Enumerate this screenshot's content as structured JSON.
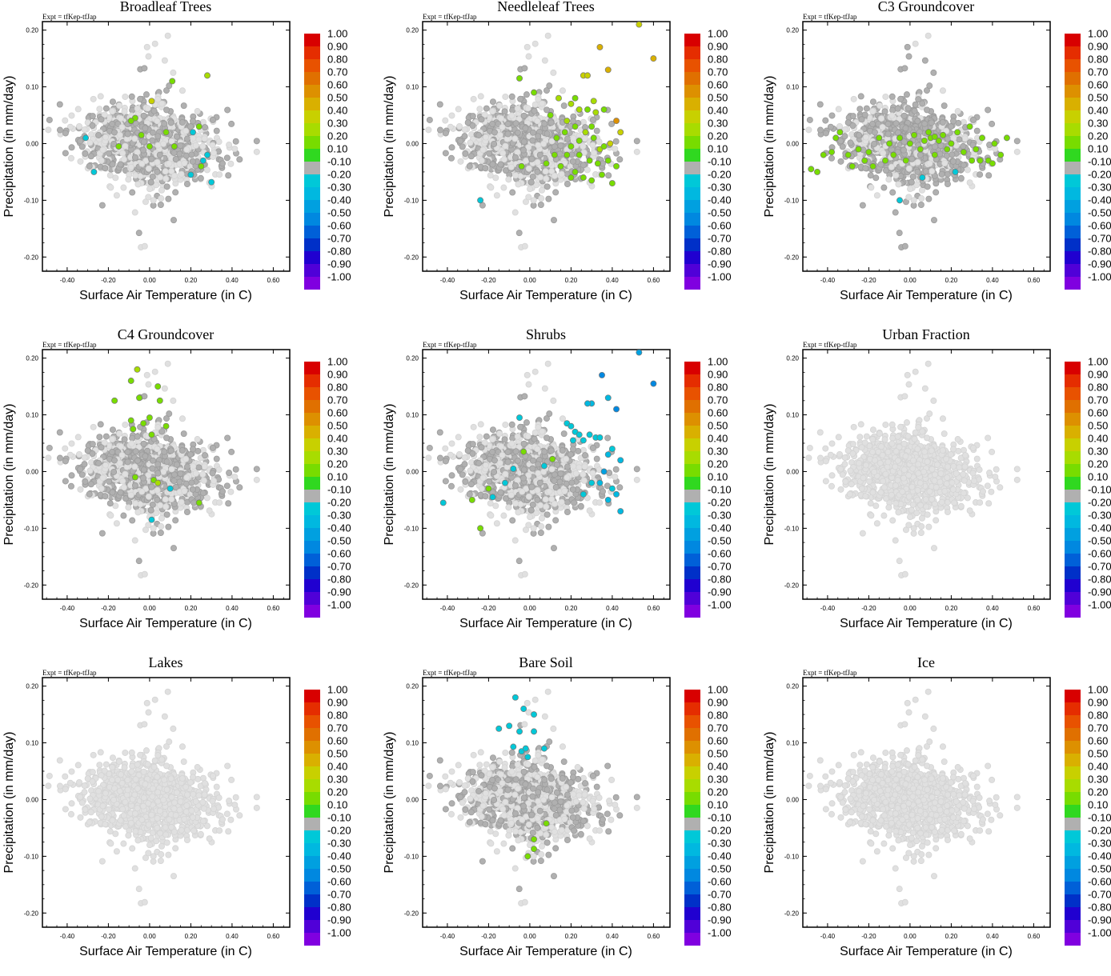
{
  "chart_data": {
    "type": "scatter",
    "expt_label": "Expt = tfKep-tfJap",
    "xlabel": "Surface Air Temperature (in C)",
    "ylabel": "Precipitation (in mm/day)",
    "xlim": [
      -0.52,
      0.68
    ],
    "ylim": [
      -0.225,
      0.215
    ],
    "xticks": [
      "-0.40",
      "-0.20",
      "0.00",
      "0.20",
      "0.40",
      "0.60"
    ],
    "yticks": [
      "0.20",
      "0.10",
      "0.00",
      "-0.10",
      "-0.20"
    ],
    "colorbar": {
      "labels": [
        "1.00",
        "0.90",
        "0.80",
        "0.70",
        "0.60",
        "0.50",
        "0.40",
        "0.30",
        "0.20",
        "0.10",
        "-0.10",
        "-0.20",
        "-0.30",
        "-0.40",
        "-0.50",
        "-0.60",
        "-0.70",
        "-0.80",
        "-0.90",
        "-1.00"
      ],
      "colors": [
        "#d80000",
        "#e52d00",
        "#e85200",
        "#e07000",
        "#dd9000",
        "#d9b000",
        "#c8d000",
        "#a8dc00",
        "#78dc00",
        "#30d820",
        "#b0b0b0",
        "#00c8d8",
        "#00b8e0",
        "#00a0e0",
        "#0088e0",
        "#0060d8",
        "#0030c8",
        "#2000d0",
        "#5000d8",
        "#8000e0"
      ]
    },
    "panels": [
      {
        "title": "Broadleaf Trees",
        "points": [
          [
            0.28,
            0.12
          ],
          [
            0.11,
            0.11
          ],
          [
            0.01,
            0.075
          ],
          [
            0.24,
            0.03
          ],
          [
            -0.07,
            0.045
          ],
          [
            -0.09,
            0.04
          ],
          [
            -0.04,
            0.015
          ],
          [
            0.08,
            0.02
          ],
          [
            0.21,
            0.02
          ],
          [
            -0.31,
            0.01
          ],
          [
            -0.15,
            -0.005
          ],
          [
            0.0,
            -0.005
          ],
          [
            0.12,
            -0.005
          ],
          [
            0.28,
            -0.02
          ],
          [
            0.26,
            -0.03
          ],
          [
            0.25,
            -0.04
          ],
          [
            0.2,
            -0.055
          ],
          [
            0.3,
            -0.068
          ],
          [
            -0.27,
            -0.05
          ]
        ],
        "point_values": [
          0.3,
          0.15,
          0.4,
          0.2,
          0.15,
          0.15,
          0.2,
          0.15,
          -0.2,
          -0.2,
          0.15,
          0.15,
          0.15,
          -0.2,
          -0.2,
          0.15,
          -0.2,
          -0.2,
          -0.2
        ],
        "hidden_values": [
          0.2,
          0.2,
          0.2,
          0.2
        ]
      },
      {
        "title": "Needleleaf Trees",
        "points": [
          [
            0.34,
            0.17
          ],
          [
            0.38,
            0.13
          ],
          [
            0.26,
            0.12
          ],
          [
            0.28,
            0.12
          ],
          [
            -0.05,
            0.115
          ],
          [
            0.02,
            0.09
          ],
          [
            0.14,
            0.08
          ],
          [
            0.22,
            0.08
          ],
          [
            0.31,
            0.075
          ],
          [
            0.2,
            0.07
          ],
          [
            0.24,
            0.06
          ],
          [
            0.28,
            0.06
          ],
          [
            0.32,
            0.055
          ],
          [
            0.36,
            0.06
          ],
          [
            0.42,
            0.04
          ],
          [
            0.1,
            0.05
          ],
          [
            0.18,
            0.04
          ],
          [
            0.22,
            0.03
          ],
          [
            0.3,
            0.03
          ],
          [
            0.27,
            0.02
          ],
          [
            0.17,
            0.02
          ],
          [
            0.13,
            0.01
          ],
          [
            0.24,
            0.005
          ],
          [
            0.31,
            0.01
          ],
          [
            0.34,
            -0.01
          ],
          [
            0.36,
            -0.005
          ],
          [
            0.39,
            0.0
          ],
          [
            0.44,
            0.02
          ],
          [
            0.2,
            -0.005
          ],
          [
            0.12,
            -0.02
          ],
          [
            0.18,
            -0.02
          ],
          [
            0.24,
            -0.02
          ],
          [
            0.29,
            -0.03
          ],
          [
            0.33,
            -0.035
          ],
          [
            0.42,
            -0.04
          ],
          [
            0.38,
            -0.03
          ],
          [
            0.08,
            -0.035
          ],
          [
            0.15,
            -0.04
          ],
          [
            0.22,
            -0.05
          ],
          [
            0.26,
            -0.06
          ],
          [
            0.35,
            -0.055
          ],
          [
            0.3,
            -0.065
          ],
          [
            0.4,
            -0.07
          ],
          [
            -0.04,
            -0.04
          ],
          [
            -0.24,
            -0.1
          ],
          [
            0.2,
            -0.06
          ],
          [
            0.6,
            0.15
          ],
          [
            0.53,
            0.21
          ]
        ],
        "point_values": [
          0.5,
          0.5,
          0.4,
          0.4,
          0.15,
          0.15,
          0.3,
          0.2,
          0.3,
          0.3,
          0.3,
          0.2,
          0.3,
          0.2,
          0.6,
          0.15,
          0.3,
          0.2,
          0.2,
          0.3,
          0.15,
          0.15,
          0.2,
          0.2,
          0.3,
          0.2,
          0.4,
          0.4,
          0.15,
          0.15,
          0.15,
          0.15,
          0.2,
          0.2,
          0.15,
          0.2,
          0.15,
          0.15,
          0.15,
          0.15,
          0.15,
          0.15,
          0.15,
          0.15,
          -0.2,
          0.15,
          0.5,
          0.4
        ]
      },
      {
        "title": "C3 Groundcover",
        "points": [
          [
            -0.48,
            -0.045
          ],
          [
            -0.45,
            -0.05
          ],
          [
            -0.42,
            -0.02
          ],
          [
            -0.38,
            -0.015
          ],
          [
            -0.36,
            0.01
          ],
          [
            -0.3,
            -0.02
          ],
          [
            -0.25,
            -0.01
          ],
          [
            -0.22,
            -0.03
          ],
          [
            -0.2,
            -0.015
          ],
          [
            -0.15,
            0.01
          ],
          [
            -0.12,
            -0.03
          ],
          [
            -0.1,
            0.0
          ],
          [
            -0.08,
            -0.02
          ],
          [
            -0.05,
            0.01
          ],
          [
            -0.02,
            -0.03
          ],
          [
            0.0,
            0.0
          ],
          [
            0.02,
            0.015
          ],
          [
            0.05,
            -0.01
          ],
          [
            0.07,
            0.005
          ],
          [
            0.1,
            0.01
          ],
          [
            0.12,
            -0.02
          ],
          [
            0.14,
            0.005
          ],
          [
            0.16,
            0.015
          ],
          [
            0.18,
            -0.01
          ],
          [
            0.2,
            0.0
          ],
          [
            0.23,
            0.02
          ],
          [
            0.26,
            -0.015
          ],
          [
            0.29,
            0.03
          ],
          [
            0.32,
            -0.01
          ],
          [
            0.35,
            0.01
          ],
          [
            0.38,
            -0.03
          ],
          [
            0.41,
            0.0
          ],
          [
            0.44,
            -0.02
          ],
          [
            0.47,
            0.01
          ],
          [
            0.09,
            0.02
          ],
          [
            -0.18,
            -0.04
          ],
          [
            0.3,
            -0.03
          ],
          [
            0.06,
            -0.06
          ],
          [
            0.22,
            -0.05
          ],
          [
            -0.05,
            -0.1
          ],
          [
            0.34,
            -0.03
          ],
          [
            -0.28,
            -0.04
          ],
          [
            0.12,
            0.012
          ],
          [
            -0.34,
            0.02
          ],
          [
            0.4,
            -0.035
          ]
        ],
        "point_values": [
          0.15,
          0.15,
          0.15,
          0.2,
          0.15,
          0.15,
          0.15,
          0.2,
          0.15,
          0.15,
          0.15,
          0.15,
          0.2,
          0.15,
          0.15,
          0.15,
          0.15,
          0.15,
          0.15,
          0.15,
          0.15,
          0.15,
          0.15,
          0.15,
          0.15,
          0.15,
          0.15,
          0.15,
          0.15,
          0.15,
          0.2,
          0.15,
          0.15,
          0.15,
          0.15,
          0.15,
          0.15,
          -0.2,
          -0.2,
          -0.2,
          0.15,
          0.15,
          0.15,
          0.15,
          0.2
        ]
      },
      {
        "title": "C4 Groundcover",
        "points": [
          [
            -0.06,
            0.18
          ],
          [
            -0.09,
            0.16
          ],
          [
            -0.17,
            0.125
          ],
          [
            -0.05,
            0.13
          ],
          [
            0.04,
            0.15
          ],
          [
            0.05,
            0.125
          ],
          [
            -0.09,
            0.09
          ],
          [
            -0.03,
            0.085
          ],
          [
            0.0,
            0.095
          ],
          [
            0.08,
            0.08
          ],
          [
            -0.08,
            0.075
          ],
          [
            0.01,
            0.065
          ],
          [
            -0.07,
            -0.01
          ],
          [
            0.02,
            -0.015
          ],
          [
            0.04,
            -0.02
          ],
          [
            0.24,
            -0.055
          ],
          [
            0.1,
            -0.03
          ],
          [
            0.01,
            -0.085
          ]
        ],
        "point_values": [
          0.3,
          0.2,
          0.15,
          0.15,
          0.15,
          0.15,
          0.15,
          0.15,
          0.15,
          0.15,
          0.15,
          0.15,
          0.15,
          0.15,
          0.3,
          0.15,
          -0.2,
          -0.2
        ]
      },
      {
        "title": "Shrubs",
        "points": [
          [
            0.35,
            0.17
          ],
          [
            0.42,
            0.11
          ],
          [
            0.38,
            0.13
          ],
          [
            0.3,
            0.12
          ],
          [
            0.28,
            0.12
          ],
          [
            0.18,
            0.085
          ],
          [
            0.2,
            0.08
          ],
          [
            0.22,
            0.07
          ],
          [
            0.24,
            0.065
          ],
          [
            0.29,
            0.065
          ],
          [
            0.32,
            0.06
          ],
          [
            0.34,
            0.06
          ],
          [
            0.26,
            0.055
          ],
          [
            0.21,
            0.055
          ],
          [
            0.4,
            0.04
          ],
          [
            0.38,
            0.03
          ],
          [
            0.44,
            0.02
          ],
          [
            0.36,
            0.0
          ],
          [
            0.34,
            -0.02
          ],
          [
            0.4,
            -0.03
          ],
          [
            0.42,
            -0.04
          ],
          [
            0.38,
            -0.05
          ],
          [
            0.44,
            -0.07
          ],
          [
            0.26,
            -0.04
          ],
          [
            -0.05,
            0.095
          ],
          [
            -0.03,
            0.035
          ],
          [
            0.11,
            0.022
          ],
          [
            0.07,
            0.01
          ],
          [
            -0.08,
            0.005
          ],
          [
            -0.12,
            -0.02
          ],
          [
            -0.2,
            -0.03
          ],
          [
            -0.24,
            -0.1
          ],
          [
            -0.28,
            -0.05
          ],
          [
            -0.42,
            -0.055
          ],
          [
            0.53,
            0.21
          ],
          [
            0.6,
            0.155
          ],
          [
            0.3,
            -0.02
          ],
          [
            -0.18,
            -0.045
          ]
        ],
        "point_values": [
          -0.5,
          -0.5,
          -0.3,
          -0.3,
          -0.3,
          -0.2,
          -0.2,
          -0.2,
          -0.2,
          -0.2,
          -0.2,
          -0.2,
          -0.2,
          -0.2,
          -0.2,
          -0.3,
          -0.3,
          -0.4,
          -0.3,
          -0.2,
          -0.3,
          -0.3,
          -0.3,
          -0.2,
          -0.2,
          0.15,
          0.15,
          -0.2,
          -0.2,
          -0.2,
          0.15,
          0.2,
          0.15,
          -0.2,
          -0.4,
          -0.5,
          -0.2,
          -0.2
        ]
      },
      {
        "title": "Urban Fraction",
        "points": [],
        "point_values": []
      },
      {
        "title": "Lakes",
        "points": [],
        "point_values": []
      },
      {
        "title": "Bare Soil",
        "points": [
          [
            -0.07,
            0.18
          ],
          [
            -0.03,
            0.16
          ],
          [
            -0.15,
            0.125
          ],
          [
            -0.1,
            0.13
          ],
          [
            -0.05,
            0.12
          ],
          [
            0.02,
            0.15
          ],
          [
            0.02,
            0.12
          ],
          [
            -0.08,
            0.093
          ],
          [
            -0.04,
            0.085
          ],
          [
            -0.02,
            0.09
          ],
          [
            0.07,
            0.09
          ],
          [
            -0.01,
            0.075
          ],
          [
            0.08,
            -0.042
          ],
          [
            0.02,
            -0.07
          ],
          [
            0.02,
            -0.087
          ],
          [
            -0.01,
            -0.1
          ]
        ],
        "point_values": [
          -0.2,
          -0.2,
          -0.2,
          -0.2,
          -0.2,
          -0.2,
          -0.2,
          -0.2,
          -0.2,
          -0.2,
          -0.2,
          -0.2,
          0.15,
          0.15,
          0.15,
          0.2
        ]
      },
      {
        "title": "Ice",
        "points": [],
        "point_values": []
      }
    ]
  }
}
